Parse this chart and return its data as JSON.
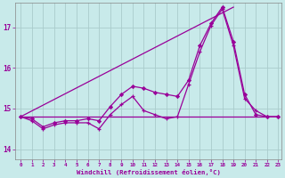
{
  "background_color": "#c8eaea",
  "grid_color": "#aacccc",
  "line_color": "#990099",
  "x_label": "Windchill (Refroidissement éolien,°C)",
  "xlim_min": -0.5,
  "xlim_max": 23.3,
  "ylim_min": 13.75,
  "ylim_max": 17.6,
  "yticks": [
    14,
    15,
    16,
    17
  ],
  "xticks": [
    0,
    1,
    2,
    3,
    4,
    5,
    6,
    7,
    8,
    9,
    10,
    11,
    12,
    13,
    14,
    15,
    16,
    17,
    18,
    19,
    20,
    21,
    22,
    23
  ],
  "series_straight": {
    "x": [
      0,
      19
    ],
    "y": [
      14.8,
      17.5
    ]
  },
  "series_wiggly": {
    "x": [
      0,
      1,
      2,
      3,
      4,
      5,
      6,
      7,
      8,
      9,
      10,
      11,
      12,
      13,
      14,
      15,
      16,
      17,
      18,
      19,
      20,
      21,
      22,
      23
    ],
    "y": [
      14.8,
      14.7,
      14.5,
      14.6,
      14.65,
      14.65,
      14.65,
      14.5,
      14.85,
      15.1,
      15.3,
      14.95,
      14.85,
      14.75,
      14.8,
      15.6,
      16.4,
      17.05,
      17.45,
      16.55,
      15.25,
      14.95,
      14.8,
      14.8
    ]
  },
  "series_flat": {
    "x": [
      0,
      14,
      22
    ],
    "y": [
      14.8,
      14.8,
      14.8
    ]
  },
  "series_rising": {
    "x": [
      0,
      1,
      2,
      3,
      4,
      5,
      6,
      7,
      8,
      9,
      10,
      11,
      12,
      13,
      14,
      15,
      16,
      17,
      18,
      19,
      20,
      21,
      22,
      23
    ],
    "y": [
      14.8,
      14.75,
      14.55,
      14.65,
      14.7,
      14.7,
      14.75,
      14.7,
      15.05,
      15.35,
      15.55,
      15.5,
      15.4,
      15.35,
      15.3,
      15.7,
      16.55,
      17.1,
      17.5,
      16.65,
      15.35,
      14.85,
      14.8,
      14.8
    ]
  }
}
